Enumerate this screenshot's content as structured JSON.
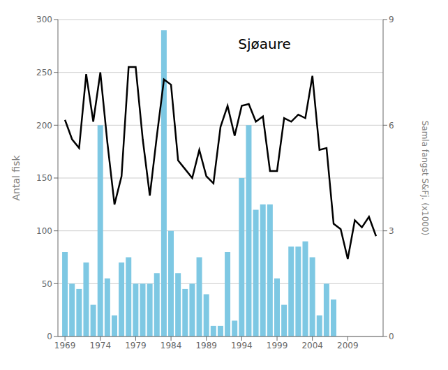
{
  "chart_data": {
    "type": "bar",
    "title": "Sjøaure",
    "ylabel": "Antal fisk",
    "y2label": "Samla fangst S&Fj. (x1000)",
    "grid": "y",
    "xlim": [
      1968.0,
      2014.0
    ],
    "xticks": [
      1969,
      1974,
      1979,
      1984,
      1989,
      1994,
      1999,
      2004,
      2009
    ],
    "ylim": [
      0,
      300
    ],
    "yticks": [
      0,
      50,
      100,
      150,
      200,
      250,
      300
    ],
    "y2lim": [
      0,
      9
    ],
    "y2ticks": [
      0,
      3,
      6,
      9
    ],
    "series": [
      {
        "type": "bar",
        "color": "#7EC8E3",
        "x": [
          1969,
          1970,
          1971,
          1972,
          1973,
          1974,
          1975,
          1976,
          1977,
          1978,
          1979,
          1980,
          1981,
          1982,
          1983,
          1984,
          1985,
          1986,
          1987,
          1988,
          1989,
          1990,
          1991,
          1992,
          1993,
          1994,
          1995,
          1996,
          1997,
          1998,
          1999,
          2000,
          2001,
          2002,
          2003,
          2004,
          2005,
          2006,
          2007,
          2008
        ],
        "values": [
          80,
          50,
          45,
          70,
          30,
          200,
          55,
          20,
          70,
          75,
          50,
          50,
          50,
          60,
          290,
          100,
          60,
          45,
          50,
          75,
          40,
          10,
          10,
          80,
          15,
          150,
          200,
          120,
          125,
          125,
          55,
          30,
          85,
          85,
          90,
          75,
          20,
          50,
          35,
          0
        ]
      },
      {
        "type": "line",
        "axis": "y2",
        "color": "#000000",
        "x": [
          1969,
          1970,
          1971,
          1972,
          1973,
          1974,
          1975,
          1976,
          1977,
          1978,
          1979,
          1980,
          1981,
          1982,
          1983,
          1984,
          1985,
          1986,
          1987,
          1988,
          1989,
          1990,
          1991,
          1992,
          1993,
          1994,
          1995,
          1996,
          1997,
          1998,
          1999,
          2000,
          2001,
          2002,
          2003,
          2004,
          2005,
          2006,
          2007,
          2008,
          2009,
          2010,
          2011,
          2012,
          2013
        ],
        "values": [
          6.15,
          5.6,
          5.35,
          7.45,
          6.1,
          7.5,
          5.5,
          3.75,
          4.55,
          7.65,
          7.65,
          5.6,
          4.0,
          5.7,
          7.3,
          7.15,
          5.0,
          4.75,
          4.5,
          5.3,
          4.55,
          4.35,
          5.95,
          6.55,
          5.7,
          6.55,
          6.6,
          6.1,
          6.25,
          4.7,
          4.7,
          6.2,
          6.1,
          6.3,
          6.2,
          7.4,
          5.3,
          5.35,
          3.2,
          3.05,
          2.2,
          3.3,
          3.1,
          3.4,
          2.85
        ]
      }
    ]
  }
}
